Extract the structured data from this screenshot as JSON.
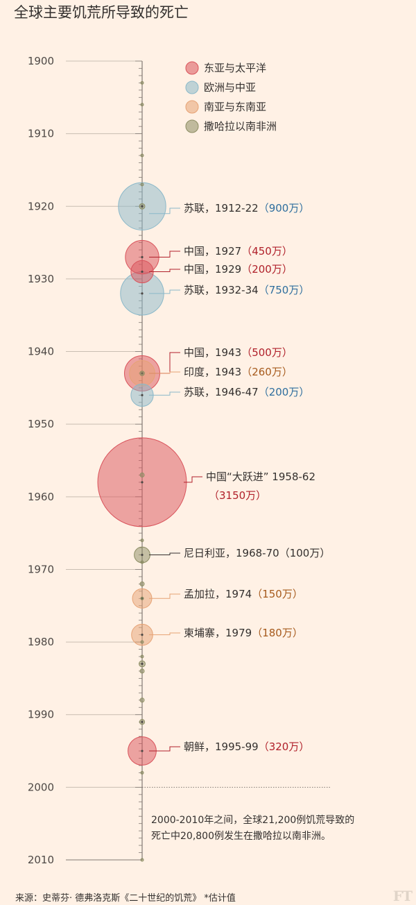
{
  "title": "全球主要饥荒所导致的死亡",
  "footer": {
    "source": "来源：史蒂芬· 德弗洛克斯《二十世纪的饥荒》 *估计值",
    "brand": "FT"
  },
  "colors": {
    "background": "#fff1e5",
    "axis": "#807973",
    "东亚与太平洋": "#d9535b",
    "欧洲与中亚": "#8ab8c9",
    "南亚与东南亚": "#e6a274",
    "撒哈拉以南非洲": "#8c8d63",
    "label_blue": "#2e6e9e",
    "label_red": "#b0202a",
    "label_orange": "#a65a1c",
    "label_green": "#33302e"
  },
  "chart_data": {
    "type": "scatter",
    "x_axis": "year",
    "ylim": [
      1900,
      2010
    ],
    "tick_labels": [
      "1900",
      "1910",
      "1920",
      "1930",
      "1940",
      "1950",
      "1960",
      "1970",
      "1980",
      "1990",
      "2000",
      "2010"
    ],
    "grid": false,
    "legend_position": "top-right",
    "legend": [
      "东亚与太平洋",
      "欧洲与中亚",
      "南亚与东南亚",
      "撒哈拉以南非洲"
    ],
    "series": [
      {
        "name": "东亚与太平洋",
        "points": [
          {
            "year": 1927,
            "deaths_wan": 450
          },
          {
            "year": 1929,
            "deaths_wan": 200
          },
          {
            "year": 1943,
            "deaths_wan": 500
          },
          {
            "year": 1958,
            "deaths_wan": 3150
          },
          {
            "year": 1995,
            "deaths_wan": 320
          }
        ]
      },
      {
        "name": "欧洲与中亚",
        "points": [
          {
            "year": 1920,
            "deaths_wan": 900
          },
          {
            "year": 1932,
            "deaths_wan": 750
          },
          {
            "year": 1946,
            "deaths_wan": 200
          }
        ]
      },
      {
        "name": "南亚与东南亚",
        "points": [
          {
            "year": 1943,
            "deaths_wan": 260
          },
          {
            "year": 1974,
            "deaths_wan": 150
          },
          {
            "year": 1979,
            "deaths_wan": 180
          }
        ]
      },
      {
        "name": "撒哈拉以南非洲",
        "points": [
          {
            "year": 1903,
            "deaths_wan": 1
          },
          {
            "year": 1906,
            "deaths_wan": 1
          },
          {
            "year": 1913,
            "deaths_wan": 3
          },
          {
            "year": 1917,
            "deaths_wan": 1
          },
          {
            "year": 1920,
            "deaths_wan": 12
          },
          {
            "year": 1943,
            "deaths_wan": 8
          },
          {
            "year": 1957,
            "deaths_wan": 7
          },
          {
            "year": 1966,
            "deaths_wan": 1
          },
          {
            "year": 1968,
            "deaths_wan": 100
          },
          {
            "year": 1969,
            "deaths_wan": 3
          },
          {
            "year": 1972,
            "deaths_wan": 7
          },
          {
            "year": 1974,
            "deaths_wan": 1
          },
          {
            "year": 1980,
            "deaths_wan": 1
          },
          {
            "year": 1982,
            "deaths_wan": 2
          },
          {
            "year": 1983,
            "deaths_wan": 15
          },
          {
            "year": 1984,
            "deaths_wan": 7
          },
          {
            "year": 1988,
            "deaths_wan": 7
          },
          {
            "year": 1991,
            "deaths_wan": 10
          },
          {
            "year": 1998,
            "deaths_wan": 2
          },
          {
            "year": 2010,
            "deaths_wan": 1
          }
        ]
      }
    ],
    "annotations": [
      {
        "year": 1921,
        "label": "苏联，1912-22",
        "value_text": "（900万）",
        "color_key": "label_blue"
      },
      {
        "year": 1927,
        "label": "中国，1927",
        "value_text": "（450万）",
        "color_key": "label_red"
      },
      {
        "year": 1929,
        "label": "中国，1929",
        "value_text": "（200万）",
        "color_key": "label_red"
      },
      {
        "year": 1932,
        "label": "苏联，1932-34",
        "value_text": "（750万）",
        "color_key": "label_blue"
      },
      {
        "year": 1943,
        "label": "中国，1943",
        "value_text": "（500万）",
        "color_key": "label_red"
      },
      {
        "year": 1943,
        "label": "印度，1943",
        "value_text": "（260万）",
        "color_key": "label_orange"
      },
      {
        "year": 1946,
        "label": "苏联，1946-47",
        "value_text": "（200万）",
        "color_key": "label_blue"
      },
      {
        "year": 1958,
        "label": "中国“大跃进” 1958-62",
        "value_text": "（3150万）",
        "color_key": "label_red"
      },
      {
        "year": 1968,
        "label": "尼日利亚，1968-70",
        "value_text": "（100万）",
        "color_key": "label_green"
      },
      {
        "year": 1974,
        "label": "孟加拉，1974",
        "value_text": "（150万）",
        "color_key": "label_orange"
      },
      {
        "year": 1979,
        "label": "柬埔寨，1979",
        "value_text": "（180万）",
        "color_key": "label_orange"
      },
      {
        "year": 1995,
        "label": "朝鲜，1995-99",
        "value_text": "（320万）",
        "color_key": "label_red"
      }
    ],
    "note": "2000-2010年之间，全球21,200例饥荒导致的死亡中20,800例发生在撒哈拉以南非洲。"
  }
}
